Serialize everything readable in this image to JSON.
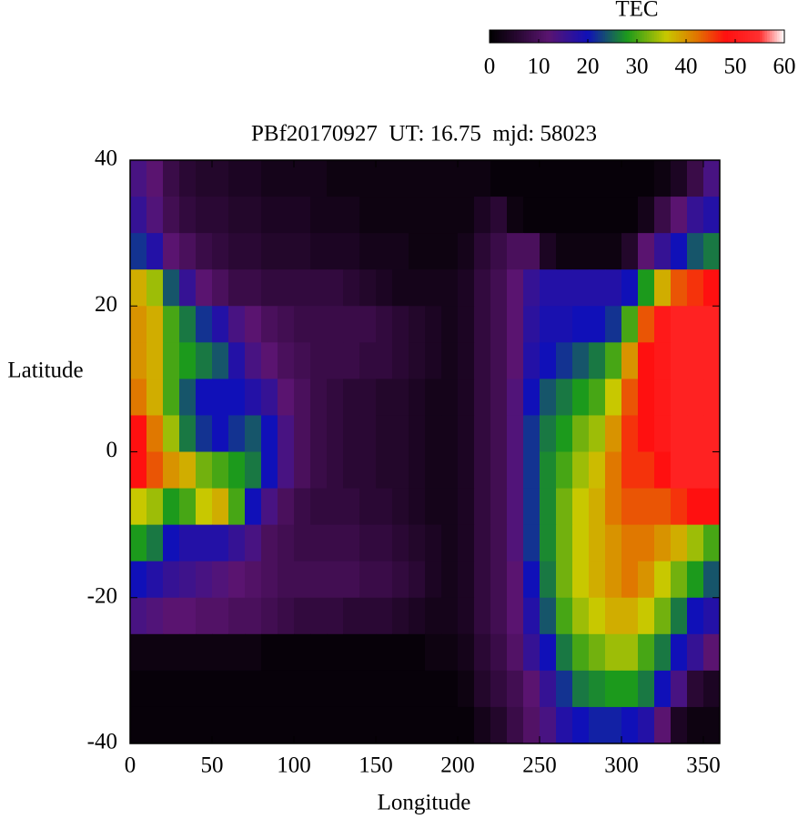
{
  "chart_data": {
    "type": "heatmap",
    "title": "PBf20170927  UT: 16.75  mjd: 58023",
    "x_label": "Longitude",
    "y_label": "Latitude",
    "colorbar_title": "TEC",
    "xlim": [
      0,
      360
    ],
    "ylim": [
      -40,
      40
    ],
    "xticks": [
      0,
      50,
      100,
      150,
      200,
      250,
      300,
      350
    ],
    "yticks": [
      -40,
      -20,
      0,
      20,
      40
    ],
    "clim": [
      0,
      60
    ],
    "colorbar_ticks": [
      0,
      10,
      20,
      30,
      40,
      50,
      60
    ],
    "colorscale": [
      [
        0,
        "#000000"
      ],
      [
        6,
        "#2a0834"
      ],
      [
        12,
        "#5a1470"
      ],
      [
        20,
        "#1010b8"
      ],
      [
        28,
        "#1c9a1c"
      ],
      [
        36,
        "#c8c800"
      ],
      [
        42,
        "#e07800"
      ],
      [
        48,
        "#ff1010"
      ],
      [
        55,
        "#ff3030"
      ],
      [
        60,
        "#ffffff"
      ]
    ],
    "x": [
      5,
      15,
      25,
      35,
      45,
      55,
      65,
      75,
      85,
      95,
      105,
      115,
      125,
      135,
      145,
      155,
      165,
      175,
      185,
      195,
      205,
      215,
      225,
      235,
      245,
      255,
      265,
      275,
      285,
      295,
      305,
      315,
      325,
      335,
      345,
      355
    ],
    "y": [
      37.5,
      32.5,
      27.5,
      22.5,
      17.5,
      12.5,
      7.5,
      2.5,
      -2.5,
      -7.5,
      -12.5,
      -17.5,
      -22.5,
      -27.5,
      -32.5,
      -37.5
    ],
    "z": [
      [
        14,
        12,
        8,
        6,
        5,
        5,
        4,
        4,
        3,
        3,
        3,
        3,
        2,
        2,
        2,
        2,
        2,
        2,
        2,
        2,
        2,
        2,
        1,
        1,
        1,
        1,
        1,
        1,
        1,
        1,
        1,
        1,
        2,
        4,
        8,
        14
      ],
      [
        16,
        13,
        9,
        7,
        6,
        6,
        5,
        5,
        4,
        4,
        4,
        3,
        3,
        3,
        2,
        2,
        2,
        2,
        2,
        2,
        2,
        4,
        6,
        2,
        1,
        1,
        1,
        1,
        1,
        1,
        1,
        3,
        8,
        12,
        16,
        18
      ],
      [
        22,
        18,
        12,
        10,
        8,
        7,
        6,
        6,
        5,
        5,
        5,
        4,
        4,
        4,
        3,
        3,
        3,
        2,
        2,
        2,
        3,
        6,
        8,
        10,
        10,
        4,
        2,
        2,
        2,
        2,
        5,
        12,
        16,
        20,
        24,
        26
      ],
      [
        38,
        34,
        24,
        16,
        12,
        10,
        8,
        8,
        7,
        7,
        7,
        7,
        7,
        6,
        5,
        4,
        3,
        3,
        3,
        3,
        4,
        7,
        9,
        12,
        16,
        18,
        18,
        18,
        18,
        18,
        20,
        28,
        38,
        44,
        46,
        48
      ],
      [
        40,
        38,
        30,
        26,
        22,
        18,
        14,
        12,
        10,
        9,
        8,
        8,
        8,
        8,
        8,
        7,
        6,
        5,
        4,
        3,
        4,
        7,
        9,
        12,
        17,
        19,
        19,
        20,
        20,
        22,
        30,
        44,
        50,
        52,
        52,
        52
      ],
      [
        40,
        38,
        30,
        28,
        26,
        24,
        18,
        14,
        12,
        10,
        9,
        8,
        8,
        8,
        7,
        7,
        6,
        5,
        4,
        3,
        4,
        7,
        9,
        12,
        18,
        20,
        22,
        24,
        26,
        30,
        40,
        48,
        50,
        52,
        52,
        52
      ],
      [
        42,
        38,
        30,
        24,
        20,
        20,
        20,
        18,
        16,
        12,
        10,
        8,
        7,
        6,
        6,
        5,
        5,
        4,
        3,
        3,
        4,
        7,
        9,
        13,
        20,
        24,
        26,
        28,
        30,
        36,
        44,
        48,
        50,
        52,
        52,
        52
      ],
      [
        48,
        42,
        34,
        26,
        22,
        20,
        22,
        24,
        20,
        14,
        10,
        8,
        7,
        6,
        6,
        5,
        5,
        4,
        3,
        3,
        4,
        7,
        9,
        13,
        22,
        26,
        28,
        32,
        34,
        40,
        46,
        48,
        50,
        52,
        52,
        52
      ],
      [
        48,
        44,
        40,
        38,
        32,
        30,
        28,
        26,
        20,
        14,
        10,
        8,
        7,
        6,
        6,
        5,
        5,
        4,
        3,
        3,
        4,
        7,
        9,
        13,
        22,
        27,
        30,
        34,
        37,
        42,
        46,
        46,
        48,
        52,
        52,
        52
      ],
      [
        36,
        34,
        28,
        30,
        36,
        38,
        30,
        20,
        14,
        10,
        8,
        7,
        7,
        7,
        6,
        6,
        5,
        4,
        3,
        3,
        4,
        7,
        9,
        13,
        22,
        27,
        32,
        36,
        38,
        42,
        44,
        44,
        44,
        46,
        48,
        48
      ],
      [
        28,
        26,
        20,
        18,
        18,
        18,
        16,
        14,
        10,
        9,
        8,
        8,
        8,
        8,
        7,
        7,
        6,
        5,
        4,
        3,
        4,
        7,
        9,
        13,
        22,
        27,
        32,
        36,
        38,
        40,
        42,
        42,
        40,
        38,
        34,
        30
      ],
      [
        20,
        18,
        16,
        15,
        14,
        13,
        12,
        11,
        10,
        9,
        9,
        9,
        9,
        9,
        8,
        8,
        7,
        6,
        4,
        3,
        4,
        7,
        9,
        12,
        20,
        26,
        32,
        36,
        38,
        40,
        42,
        40,
        36,
        32,
        28,
        24
      ],
      [
        14,
        13,
        12,
        12,
        11,
        11,
        10,
        10,
        9,
        8,
        7,
        7,
        7,
        6,
        6,
        6,
        5,
        4,
        3,
        3,
        4,
        7,
        9,
        12,
        18,
        24,
        30,
        34,
        36,
        38,
        38,
        36,
        32,
        26,
        20,
        18
      ],
      [
        2,
        2,
        2,
        2,
        2,
        2,
        2,
        2,
        1,
        1,
        1,
        1,
        1,
        1,
        1,
        1,
        1,
        1,
        2,
        2,
        3,
        6,
        8,
        11,
        16,
        20,
        26,
        30,
        32,
        34,
        34,
        30,
        26,
        20,
        16,
        12
      ],
      [
        1,
        1,
        1,
        1,
        1,
        1,
        1,
        1,
        1,
        1,
        1,
        1,
        1,
        1,
        1,
        1,
        1,
        1,
        1,
        1,
        2,
        5,
        7,
        9,
        12,
        16,
        22,
        26,
        27,
        28,
        28,
        26,
        20,
        14,
        6,
        4
      ],
      [
        1,
        1,
        1,
        1,
        1,
        1,
        1,
        1,
        1,
        1,
        1,
        1,
        1,
        1,
        1,
        1,
        1,
        1,
        1,
        1,
        1,
        3,
        5,
        8,
        11,
        14,
        18,
        20,
        21,
        21,
        20,
        18,
        12,
        4,
        2,
        2
      ]
    ]
  }
}
